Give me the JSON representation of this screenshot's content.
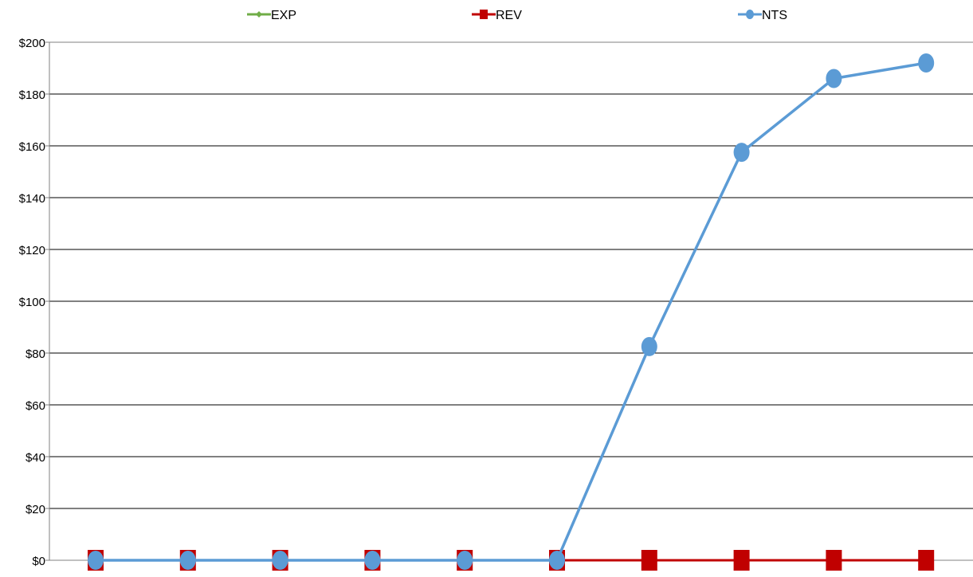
{
  "chart_data": {
    "type": "line",
    "title": "",
    "xlabel": "",
    "ylabel": "",
    "x": [
      1,
      2,
      3,
      4,
      5,
      6,
      7,
      8,
      9,
      10
    ],
    "ylim": [
      0,
      200
    ],
    "yticks": [
      0,
      20,
      40,
      60,
      80,
      100,
      120,
      140,
      160,
      180,
      200
    ],
    "ytick_labels": [
      "$0",
      "$20",
      "$40",
      "$60",
      "$80",
      "$100",
      "$120",
      "$140",
      "$160",
      "$180",
      "$200"
    ],
    "grid": "horizontal",
    "legend_position": "top",
    "series": [
      {
        "name": "EXP",
        "color": "#70AD47",
        "marker": "diamond",
        "values": [
          0,
          0,
          0,
          0,
          0,
          0,
          0,
          0,
          0,
          0
        ]
      },
      {
        "name": "REV",
        "color": "#C00000",
        "marker": "square",
        "values": [
          0,
          0,
          0,
          0,
          0,
          0,
          0,
          0,
          0,
          0
        ]
      },
      {
        "name": "NTS",
        "color": "#5B9BD5",
        "marker": "circle",
        "values": [
          0,
          0,
          0,
          0,
          0,
          0,
          82.5,
          157.5,
          186,
          192
        ]
      }
    ]
  }
}
